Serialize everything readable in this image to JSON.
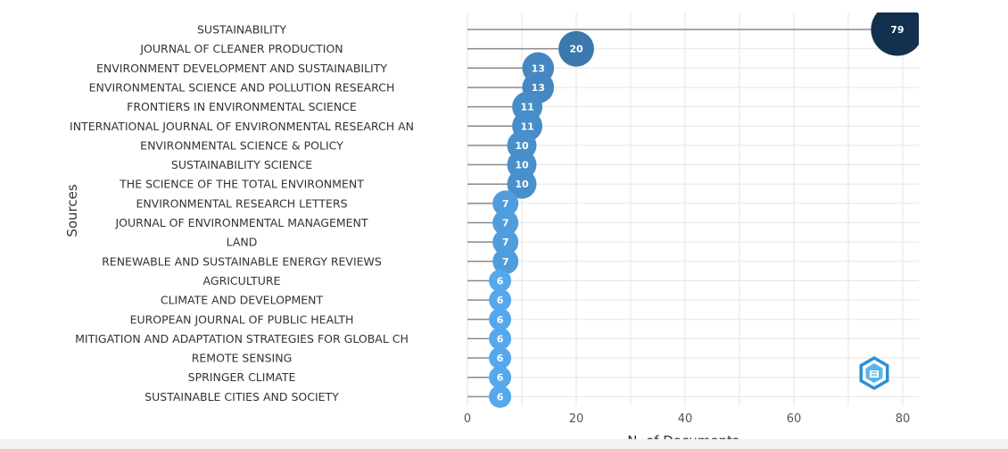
{
  "chart_data": {
    "type": "lollipop",
    "xlabel": "N. of Documents",
    "ylabel": "Sources",
    "xlim": [
      0,
      83
    ],
    "xticks": [
      0,
      20,
      40,
      60,
      80
    ],
    "grid": true,
    "categories": [
      "SUSTAINABILITY",
      "JOURNAL OF CLEANER PRODUCTION",
      "ENVIRONMENT DEVELOPMENT AND SUSTAINABILITY",
      "ENVIRONMENTAL SCIENCE AND POLLUTION RESEARCH",
      "FRONTIERS IN ENVIRONMENTAL SCIENCE",
      "INTERNATIONAL JOURNAL OF ENVIRONMENTAL RESEARCH AN",
      "ENVIRONMENTAL SCIENCE & POLICY",
      "SUSTAINABILITY SCIENCE",
      "THE SCIENCE OF THE TOTAL ENVIRONMENT",
      "ENVIRONMENTAL RESEARCH LETTERS",
      "JOURNAL OF ENVIRONMENTAL MANAGEMENT",
      "LAND",
      "RENEWABLE AND SUSTAINABLE ENERGY REVIEWS",
      "AGRICULTURE",
      "CLIMATE AND DEVELOPMENT",
      "EUROPEAN JOURNAL OF PUBLIC HEALTH",
      "MITIGATION AND ADAPTATION STRATEGIES FOR GLOBAL CH",
      "REMOTE SENSING",
      "SPRINGER CLIMATE",
      "SUSTAINABLE CITIES AND SOCIETY"
    ],
    "values": [
      79,
      20,
      13,
      13,
      11,
      11,
      10,
      10,
      10,
      7,
      7,
      7,
      7,
      6,
      6,
      6,
      6,
      6,
      6,
      6
    ],
    "colors": {
      "low": "#56a8ec",
      "high": "#13304f",
      "stem": "#8a8a8a",
      "grid": "#e6e6e6"
    }
  },
  "logo": {
    "icon": "bibliometrix-logo-icon",
    "color": "#2e8fd6"
  }
}
